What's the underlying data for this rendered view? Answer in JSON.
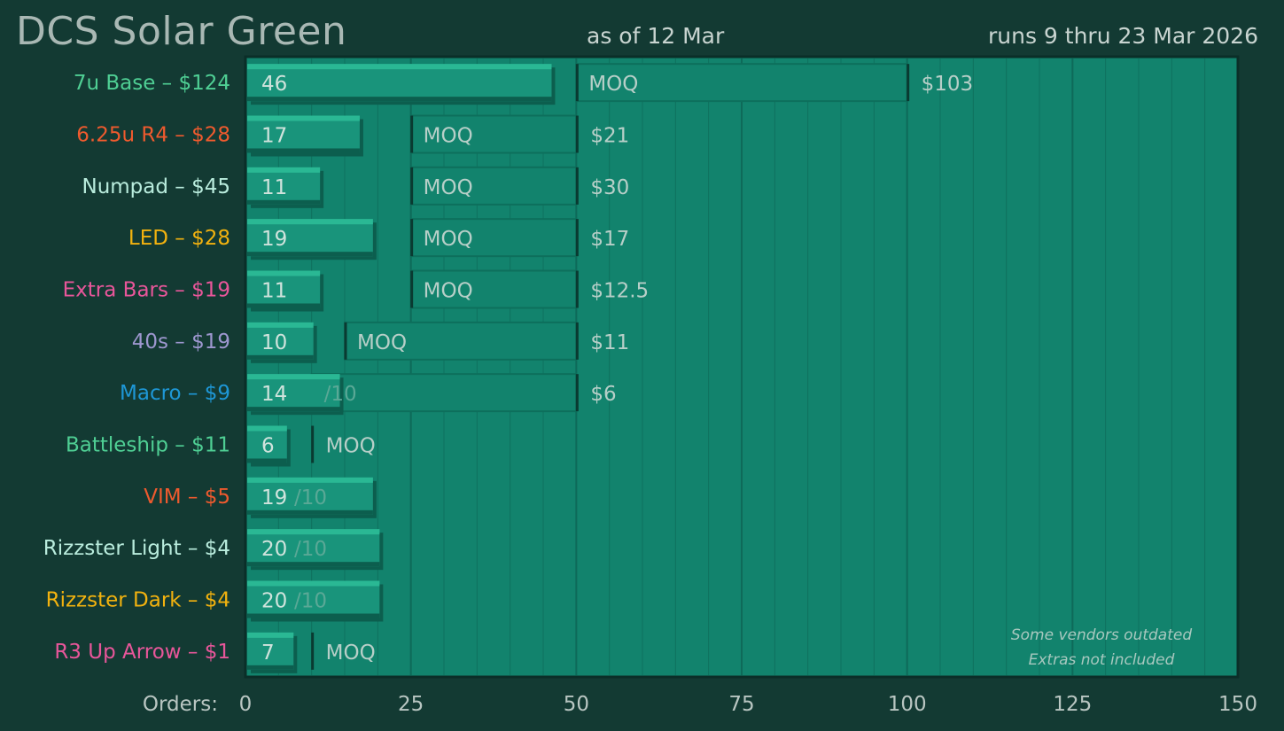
{
  "header": {
    "title": "DCS Solar Green",
    "as_of": "as of 12 Mar",
    "runs": "runs 9 thru 23 Mar 2026"
  },
  "colors": {
    "background": "#133a33",
    "plot": "#12836d",
    "bar_top": "#2ab894",
    "bar_face": "#19947b",
    "bar_shadow": "#0c5e4e",
    "gridline": "#0e6a59"
  },
  "chart_data": {
    "type": "bar",
    "orientation": "horizontal",
    "xlabel": "Orders:",
    "xlim": [
      0,
      150
    ],
    "xticks": [
      0,
      25,
      50,
      75,
      100,
      125,
      150
    ],
    "minor_grid_step": 5,
    "categories": [
      "7u Base – $124",
      "6.25u R4 – $28",
      "Numpad – $45",
      "LED – $28",
      "Extra Bars – $19",
      "40s – $19",
      "Macro – $9",
      "Battleship – $11",
      "VIM – $5",
      "Rizzster Light – $4",
      "Rizzster Dark – $4",
      "R3 Up Arrow – $1"
    ],
    "category_colors": [
      "#4fcf94",
      "#ee5a2e",
      "#b9ecdd",
      "#f2b20f",
      "#e8569a",
      "#9d97cf",
      "#1e97d6",
      "#4fcf94",
      "#ee5a2e",
      "#b9ecdd",
      "#f2b20f",
      "#e8569a"
    ],
    "series": [
      {
        "values": [
          46,
          17,
          11,
          19,
          11,
          10,
          14,
          6,
          19,
          20,
          20,
          7
        ]
      }
    ],
    "thresholds": [
      {
        "start": 50,
        "end": 100,
        "text": "MOQ",
        "faint": false
      },
      {
        "start": 25,
        "end": 50,
        "text": "MOQ",
        "faint": false
      },
      {
        "start": 25,
        "end": 50,
        "text": "MOQ",
        "faint": false
      },
      {
        "start": 25,
        "end": 50,
        "text": "MOQ",
        "faint": false
      },
      {
        "start": 25,
        "end": 50,
        "text": "MOQ",
        "faint": false
      },
      {
        "start": 15,
        "end": 50,
        "text": "MOQ",
        "faint": false
      },
      {
        "start": 10,
        "end": 50,
        "text": "/10",
        "faint": true
      },
      {
        "start": 10,
        "end": 10,
        "text": "MOQ",
        "faint": false
      },
      {
        "start": 10,
        "end": 10,
        "text": "/10",
        "faint": true
      },
      {
        "start": 10,
        "end": 10,
        "text": "/10",
        "faint": true
      },
      {
        "start": 10,
        "end": 10,
        "text": "/10",
        "faint": true
      },
      {
        "start": 10,
        "end": 10,
        "text": "MOQ",
        "faint": false
      }
    ],
    "prices": [
      "$103",
      "$21",
      "$30",
      "$17",
      "$12.5",
      "$11",
      "$6",
      "",
      "",
      "",
      "",
      ""
    ],
    "notes": [
      "Some vendors outdated",
      "Extras not included"
    ]
  }
}
